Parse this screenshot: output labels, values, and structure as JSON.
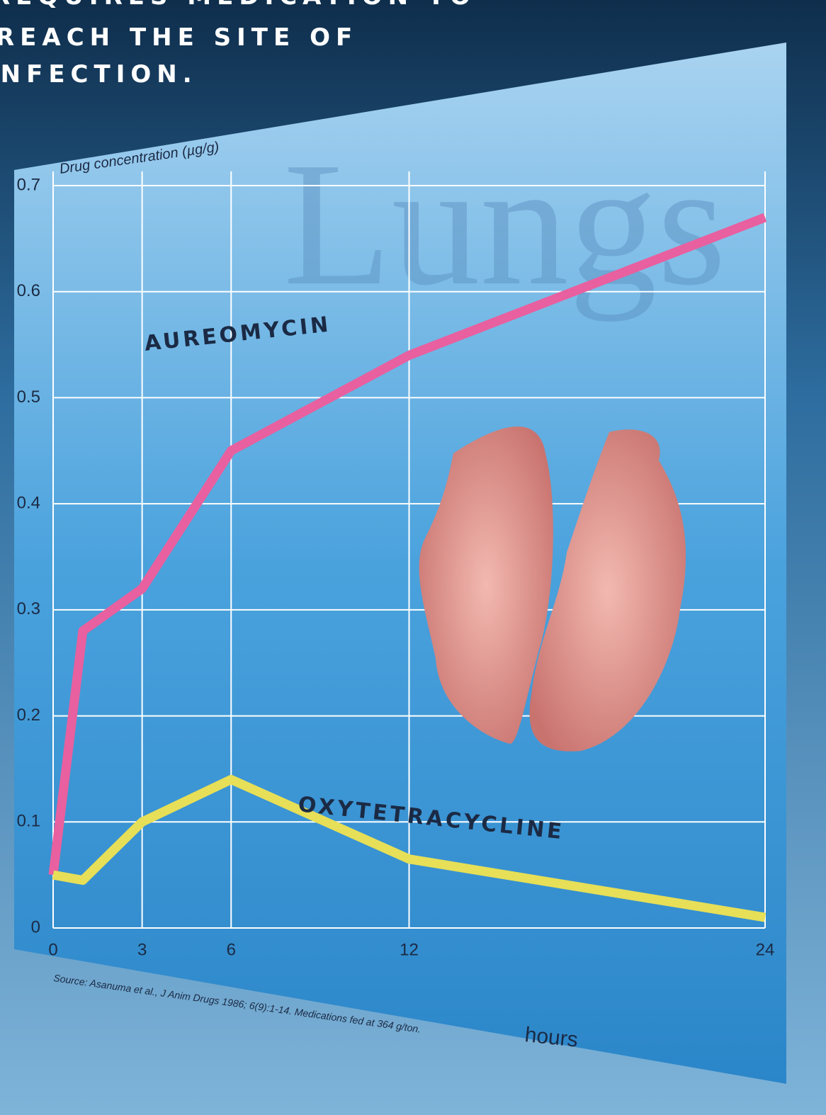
{
  "header": {
    "lines": [
      "REQUIRES MEDICATION TO",
      "REACH THE SITE OF",
      "INFECTION."
    ]
  },
  "chart_data": {
    "type": "line",
    "y_label": "Drug concentration (µg/g)",
    "x_label": "hours",
    "watermark": "Lungs",
    "source": "Source: Asanuma et al., J Anim Drugs 1986; 6(9):1-14.  Medications fed at 364 g/ton.",
    "x": [
      0,
      1,
      3,
      6,
      12,
      24
    ],
    "series": [
      {
        "name": "AUREOMYCIN",
        "color": "#e8609f",
        "values": [
          0.05,
          0.28,
          0.32,
          0.45,
          0.54,
          0.67
        ]
      },
      {
        "name": "OXYTETRACYCLINE",
        "color": "#e6df57",
        "values": [
          0.05,
          0.045,
          0.1,
          0.14,
          0.065,
          0.01
        ]
      }
    ],
    "xlim": [
      0,
      24
    ],
    "xticks": [
      0,
      3,
      6,
      12,
      24
    ],
    "ylim": [
      0,
      0.7
    ],
    "yticks": [
      0,
      0.1,
      0.2,
      0.3,
      0.4,
      0.5,
      0.6,
      0.7
    ],
    "grid": true
  }
}
